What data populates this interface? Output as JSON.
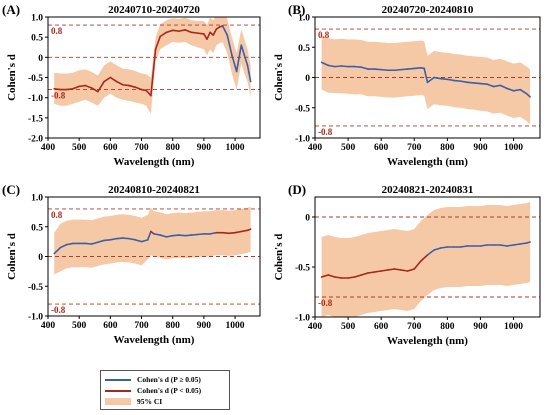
{
  "colors": {
    "ns_line": "#3b5ea8",
    "sig_line": "#a8271b",
    "ci_fill": "#f6c9a6",
    "ref_line": "#b03a2e",
    "ref_label": "#a8271b"
  },
  "legend": {
    "ns": "Cohen's d (P ≥ 0.05)",
    "sig": "Cohen's d (P < 0.05)",
    "ci": "95% CI"
  },
  "chart_data": [
    {
      "panel": "(A)",
      "title": "20240710-20240720",
      "type": "line",
      "xlabel": "Wavelength (nm)",
      "ylabel": "Cohen's d",
      "xlim": [
        400,
        1080
      ],
      "ylim": [
        -2.0,
        1.0
      ],
      "xticks": [
        "400",
        "500",
        "600",
        "700",
        "800",
        "900",
        "1000"
      ],
      "yticks": [
        "1.0",
        "0.5",
        "0",
        "-0.5",
        "-1.0",
        "-1.5",
        "-2.0"
      ],
      "ref_lines": [
        0.8,
        0,
        -0.8
      ],
      "ref_labels": [
        "0.8",
        "-0.8"
      ],
      "grid": false,
      "series": [
        {
          "x": [
            420,
            440,
            460,
            480,
            500,
            520,
            540,
            560,
            580,
            600,
            620,
            640,
            660,
            680,
            700,
            715,
            730,
            745,
            760,
            780,
            800,
            820,
            840,
            860,
            880,
            900,
            910,
            920,
            930,
            940,
            950,
            960,
            975,
            990,
            1005,
            1020,
            1030,
            1040,
            1050
          ],
          "y": [
            -0.78,
            -0.8,
            -0.8,
            -0.78,
            -0.72,
            -0.7,
            -0.76,
            -0.85,
            -0.6,
            -0.5,
            -0.6,
            -0.68,
            -0.7,
            -0.74,
            -0.8,
            -0.82,
            -0.95,
            0.2,
            0.52,
            0.62,
            0.67,
            0.65,
            0.68,
            0.62,
            0.6,
            0.58,
            0.45,
            0.62,
            0.55,
            0.7,
            0.75,
            0.78,
            0.55,
            0.05,
            -0.35,
            0.3,
            0.05,
            -0.2,
            -0.6
          ],
          "p_sig": [
            true,
            true,
            true,
            true,
            true,
            true,
            true,
            true,
            true,
            true,
            true,
            true,
            true,
            true,
            true,
            true,
            true,
            true,
            true,
            true,
            true,
            true,
            true,
            true,
            true,
            true,
            true,
            true,
            true,
            true,
            true,
            true,
            false,
            false,
            false,
            false,
            false,
            false,
            false
          ],
          "ci_low": [
            -1.15,
            -1.2,
            -1.2,
            -1.15,
            -1.1,
            -1.05,
            -1.12,
            -1.2,
            -1.0,
            -0.9,
            -1.0,
            -1.05,
            -1.08,
            -1.12,
            -1.15,
            -1.2,
            -1.4,
            -0.1,
            0.2,
            0.3,
            0.38,
            0.36,
            0.38,
            0.3,
            0.25,
            0.2,
            0.05,
            0.2,
            0.1,
            0.3,
            0.35,
            0.38,
            0.1,
            -0.4,
            -0.8,
            -0.15,
            -0.4,
            -0.6,
            -1.0
          ],
          "ci_high": [
            -0.38,
            -0.4,
            -0.4,
            -0.38,
            -0.32,
            -0.3,
            -0.36,
            -0.45,
            -0.2,
            -0.1,
            -0.2,
            -0.28,
            -0.3,
            -0.34,
            -0.4,
            -0.42,
            -0.5,
            0.5,
            0.82,
            0.92,
            0.97,
            0.95,
            0.98,
            0.92,
            0.9,
            0.9,
            0.8,
            0.98,
            0.92,
            1.05,
            1.1,
            1.12,
            0.95,
            0.5,
            0.1,
            0.7,
            0.45,
            0.2,
            -0.2
          ]
        }
      ]
    },
    {
      "panel": "(B)",
      "title": "20240720-20240810",
      "type": "line",
      "xlabel": "Wavelength (nm)",
      "ylabel": "Cohen's d",
      "xlim": [
        400,
        1080
      ],
      "ylim": [
        -1.0,
        1.0
      ],
      "xticks": [
        "400",
        "500",
        "600",
        "700",
        "800",
        "900",
        "1000"
      ],
      "yticks": [
        "1.0",
        "0.5",
        "0",
        "-0.5",
        "-1.0"
      ],
      "ref_lines": [
        0.8,
        0,
        -0.8
      ],
      "ref_labels": [
        "0.8",
        "-0.8"
      ],
      "grid": false,
      "series": [
        {
          "x": [
            420,
            440,
            460,
            480,
            500,
            520,
            540,
            560,
            580,
            600,
            620,
            640,
            660,
            680,
            700,
            720,
            730,
            740,
            760,
            780,
            800,
            820,
            840,
            860,
            880,
            900,
            920,
            940,
            960,
            980,
            1000,
            1020,
            1040,
            1050
          ],
          "y": [
            0.25,
            0.2,
            0.18,
            0.19,
            0.18,
            0.18,
            0.17,
            0.14,
            0.14,
            0.13,
            0.12,
            0.12,
            0.13,
            0.14,
            0.15,
            0.16,
            0.15,
            -0.08,
            0.0,
            -0.02,
            -0.03,
            -0.05,
            -0.06,
            -0.08,
            -0.09,
            -0.1,
            -0.11,
            -0.15,
            -0.13,
            -0.18,
            -0.22,
            -0.2,
            -0.27,
            -0.32
          ],
          "p_sig": [
            false,
            false,
            false,
            false,
            false,
            false,
            false,
            false,
            false,
            false,
            false,
            false,
            false,
            false,
            false,
            false,
            false,
            false,
            false,
            false,
            false,
            false,
            false,
            false,
            false,
            false,
            false,
            false,
            false,
            false,
            false,
            false,
            false,
            false
          ],
          "ci_low": [
            -0.2,
            -0.25,
            -0.26,
            -0.26,
            -0.27,
            -0.28,
            -0.28,
            -0.31,
            -0.31,
            -0.32,
            -0.33,
            -0.33,
            -0.32,
            -0.31,
            -0.3,
            -0.29,
            -0.3,
            -0.52,
            -0.44,
            -0.46,
            -0.47,
            -0.49,
            -0.5,
            -0.52,
            -0.53,
            -0.55,
            -0.56,
            -0.6,
            -0.58,
            -0.63,
            -0.67,
            -0.65,
            -0.72,
            -0.77
          ],
          "ci_high": [
            0.7,
            0.65,
            0.63,
            0.64,
            0.63,
            0.63,
            0.62,
            0.59,
            0.59,
            0.58,
            0.57,
            0.57,
            0.58,
            0.59,
            0.6,
            0.61,
            0.6,
            0.36,
            0.44,
            0.42,
            0.41,
            0.39,
            0.38,
            0.36,
            0.35,
            0.34,
            0.33,
            0.29,
            0.31,
            0.27,
            0.23,
            0.25,
            0.18,
            0.13
          ]
        }
      ]
    },
    {
      "panel": "(C)",
      "title": "20240810-20240821",
      "type": "line",
      "xlabel": "Wavelength (nm)",
      "ylabel": "Cohen's d",
      "xlim": [
        400,
        1080
      ],
      "ylim": [
        -1.0,
        1.0
      ],
      "xticks": [
        "400",
        "500",
        "600",
        "700",
        "800",
        "900",
        "1000"
      ],
      "yticks": [
        "1.0",
        "0.5",
        "0",
        "-0.5",
        "-1.0"
      ],
      "ref_lines": [
        0.8,
        0,
        -0.8
      ],
      "ref_labels": [
        "0.8",
        "-0.8"
      ],
      "grid": false,
      "series": [
        {
          "x": [
            420,
            440,
            460,
            480,
            500,
            520,
            540,
            560,
            580,
            600,
            620,
            640,
            660,
            680,
            700,
            720,
            730,
            740,
            760,
            780,
            800,
            820,
            840,
            860,
            880,
            900,
            920,
            940,
            960,
            980,
            1000,
            1020,
            1040,
            1050
          ],
          "y": [
            0.05,
            0.15,
            0.2,
            0.22,
            0.22,
            0.22,
            0.21,
            0.24,
            0.27,
            0.28,
            0.3,
            0.31,
            0.3,
            0.28,
            0.25,
            0.28,
            0.42,
            0.38,
            0.36,
            0.33,
            0.35,
            0.36,
            0.35,
            0.36,
            0.37,
            0.38,
            0.38,
            0.4,
            0.4,
            0.39,
            0.4,
            0.42,
            0.44,
            0.46
          ],
          "p_sig": [
            false,
            false,
            false,
            false,
            false,
            false,
            false,
            false,
            false,
            false,
            false,
            false,
            false,
            false,
            false,
            false,
            true,
            true,
            false,
            false,
            false,
            false,
            false,
            false,
            false,
            false,
            false,
            true,
            true,
            true,
            true,
            true,
            true,
            true
          ],
          "ci_low": [
            -0.3,
            -0.25,
            -0.2,
            -0.18,
            -0.18,
            -0.18,
            -0.19,
            -0.16,
            -0.13,
            -0.12,
            -0.1,
            -0.09,
            -0.1,
            -0.12,
            -0.15,
            -0.05,
            0.02,
            0.0,
            -0.02,
            -0.05,
            -0.03,
            -0.02,
            -0.03,
            -0.02,
            -0.01,
            0.0,
            0.0,
            0.02,
            0.02,
            0.01,
            0.02,
            0.04,
            0.06,
            0.08
          ],
          "ci_high": [
            0.4,
            0.55,
            0.6,
            0.62,
            0.62,
            0.62,
            0.61,
            0.64,
            0.67,
            0.68,
            0.7,
            0.71,
            0.7,
            0.68,
            0.65,
            0.7,
            0.82,
            0.76,
            0.74,
            0.71,
            0.73,
            0.74,
            0.73,
            0.74,
            0.75,
            0.76,
            0.76,
            0.78,
            0.78,
            0.77,
            0.78,
            0.8,
            0.82,
            0.84
          ]
        }
      ]
    },
    {
      "panel": "(D)",
      "title": "20240821-20240831",
      "type": "line",
      "xlabel": "Wavelength (nm)",
      "ylabel": "Cohen's d",
      "xlim": [
        400,
        1080
      ],
      "ylim": [
        -1.0,
        0.2
      ],
      "xticks": [
        "400",
        "500",
        "600",
        "700",
        "800",
        "900",
        "1000"
      ],
      "yticks": [
        "0",
        "-0.5",
        "-1.0"
      ],
      "ref_lines": [
        0,
        -0.8
      ],
      "ref_labels": [
        "-0.8"
      ],
      "grid": false,
      "series": [
        {
          "x": [
            420,
            440,
            460,
            480,
            500,
            520,
            540,
            560,
            580,
            600,
            620,
            640,
            660,
            680,
            700,
            720,
            740,
            760,
            780,
            800,
            820,
            840,
            860,
            880,
            900,
            920,
            940,
            960,
            980,
            1000,
            1020,
            1040,
            1050
          ],
          "y": [
            -0.6,
            -0.58,
            -0.6,
            -0.61,
            -0.61,
            -0.6,
            -0.58,
            -0.56,
            -0.55,
            -0.54,
            -0.53,
            -0.52,
            -0.53,
            -0.54,
            -0.52,
            -0.44,
            -0.38,
            -0.33,
            -0.31,
            -0.3,
            -0.3,
            -0.3,
            -0.29,
            -0.29,
            -0.29,
            -0.28,
            -0.28,
            -0.28,
            -0.29,
            -0.28,
            -0.27,
            -0.26,
            -0.25
          ],
          "p_sig": [
            true,
            true,
            true,
            true,
            true,
            true,
            true,
            true,
            true,
            true,
            true,
            true,
            true,
            true,
            true,
            true,
            true,
            false,
            false,
            false,
            false,
            false,
            false,
            false,
            false,
            false,
            false,
            false,
            false,
            false,
            false,
            false,
            false
          ],
          "ci_low": [
            -1.0,
            -0.98,
            -1.0,
            -1.0,
            -1.0,
            -1.0,
            -0.98,
            -0.96,
            -0.95,
            -0.94,
            -0.93,
            -0.92,
            -0.93,
            -0.94,
            -0.92,
            -0.84,
            -0.78,
            -0.73,
            -0.71,
            -0.7,
            -0.7,
            -0.7,
            -0.69,
            -0.69,
            -0.69,
            -0.68,
            -0.68,
            -0.68,
            -0.69,
            -0.68,
            -0.67,
            -0.66,
            -0.65
          ],
          "ci_high": [
            -0.2,
            -0.18,
            -0.2,
            -0.21,
            -0.21,
            -0.2,
            -0.18,
            -0.16,
            -0.15,
            -0.14,
            -0.13,
            -0.12,
            -0.13,
            -0.14,
            -0.12,
            -0.04,
            0.02,
            0.07,
            0.09,
            0.1,
            0.1,
            0.1,
            0.11,
            0.11,
            0.11,
            0.12,
            0.12,
            0.12,
            0.11,
            0.12,
            0.13,
            0.14,
            0.15
          ]
        }
      ]
    }
  ]
}
